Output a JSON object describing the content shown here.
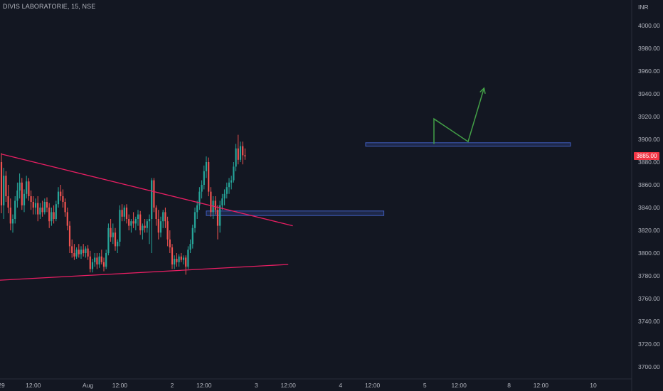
{
  "header": {
    "title": "DIVIS LABORATORIE, 15, NSE"
  },
  "axis": {
    "currency": "INR"
  },
  "last_price": {
    "label": "3885.00",
    "value": 3885
  },
  "colors": {
    "background": "#131722",
    "up": "#26a69a",
    "down": "#ef5350",
    "trendline": "#e91e63",
    "zone": "#3f5dbf",
    "arrow": "#43a047",
    "last_price": "#f23645"
  },
  "chart_data": {
    "type": "candlestick",
    "title": "DIVIS LABORATORIE, 15, NSE",
    "ylabel": "INR",
    "ylim": [
      3690,
      4010
    ],
    "yticks": [
      3700,
      3720,
      3740,
      3760,
      3780,
      3800,
      3820,
      3840,
      3860,
      3880,
      3900,
      3920,
      3940,
      3960,
      3980,
      4000
    ],
    "ytick_labels": [
      "3700.00",
      "3720.00",
      "3740.00",
      "3760.00",
      "3780.00",
      "3800.00",
      "3820.00",
      "3840.00",
      "3860.00",
      "3880.00",
      "3900.00",
      "3920.00",
      "3940.00",
      "3960.00",
      "3980.00",
      "4000.00"
    ],
    "xticks": [
      {
        "label": "29",
        "i": 0
      },
      {
        "label": "12:00",
        "i": 14
      },
      {
        "label": "Aug",
        "i": 38
      },
      {
        "label": "12:00",
        "i": 52
      },
      {
        "label": "2",
        "i": 75
      },
      {
        "label": "12:00",
        "i": 89
      },
      {
        "label": "3",
        "i": 112
      },
      {
        "label": "12:00",
        "i": 126
      },
      {
        "label": "4",
        "i": 149
      },
      {
        "label": "12:00",
        "i": 163
      },
      {
        "label": "5",
        "i": 186
      },
      {
        "label": "12:00",
        "i": 201
      },
      {
        "label": "8",
        "i": 223
      },
      {
        "label": "12:00",
        "i": 237
      },
      {
        "label": "10",
        "i": 260
      }
    ],
    "candles": [
      {
        "o": 3880,
        "h": 3888,
        "l": 3835,
        "c": 3842
      },
      {
        "o": 3842,
        "h": 3875,
        "l": 3830,
        "c": 3868
      },
      {
        "o": 3868,
        "h": 3872,
        "l": 3845,
        "c": 3850
      },
      {
        "o": 3850,
        "h": 3860,
        "l": 3835,
        "c": 3840
      },
      {
        "o": 3840,
        "h": 3848,
        "l": 3820,
        "c": 3826
      },
      {
        "o": 3826,
        "h": 3834,
        "l": 3818,
        "c": 3830
      },
      {
        "o": 3830,
        "h": 3850,
        "l": 3826,
        "c": 3846
      },
      {
        "o": 3846,
        "h": 3862,
        "l": 3840,
        "c": 3855
      },
      {
        "o": 3855,
        "h": 3870,
        "l": 3848,
        "c": 3862
      },
      {
        "o": 3862,
        "h": 3866,
        "l": 3838,
        "c": 3842
      },
      {
        "o": 3842,
        "h": 3856,
        "l": 3836,
        "c": 3852
      },
      {
        "o": 3852,
        "h": 3868,
        "l": 3848,
        "c": 3863
      },
      {
        "o": 3863,
        "h": 3866,
        "l": 3846,
        "c": 3850
      },
      {
        "o": 3850,
        "h": 3855,
        "l": 3838,
        "c": 3845
      },
      {
        "o": 3845,
        "h": 3850,
        "l": 3834,
        "c": 3840
      },
      {
        "o": 3840,
        "h": 3848,
        "l": 3834,
        "c": 3844
      },
      {
        "o": 3844,
        "h": 3850,
        "l": 3828,
        "c": 3834
      },
      {
        "o": 3834,
        "h": 3844,
        "l": 3830,
        "c": 3840
      },
      {
        "o": 3840,
        "h": 3846,
        "l": 3832,
        "c": 3836
      },
      {
        "o": 3836,
        "h": 3848,
        "l": 3834,
        "c": 3845
      },
      {
        "o": 3845,
        "h": 3849,
        "l": 3836,
        "c": 3840
      },
      {
        "o": 3840,
        "h": 3844,
        "l": 3822,
        "c": 3828
      },
      {
        "o": 3828,
        "h": 3840,
        "l": 3824,
        "c": 3836
      },
      {
        "o": 3836,
        "h": 3842,
        "l": 3826,
        "c": 3830
      },
      {
        "o": 3830,
        "h": 3846,
        "l": 3828,
        "c": 3843
      },
      {
        "o": 3843,
        "h": 3858,
        "l": 3840,
        "c": 3854
      },
      {
        "o": 3854,
        "h": 3860,
        "l": 3846,
        "c": 3850
      },
      {
        "o": 3850,
        "h": 3856,
        "l": 3840,
        "c": 3845
      },
      {
        "o": 3845,
        "h": 3848,
        "l": 3832,
        "c": 3836
      },
      {
        "o": 3836,
        "h": 3840,
        "l": 3820,
        "c": 3824
      },
      {
        "o": 3824,
        "h": 3828,
        "l": 3800,
        "c": 3806
      },
      {
        "o": 3806,
        "h": 3812,
        "l": 3796,
        "c": 3800
      },
      {
        "o": 3800,
        "h": 3808,
        "l": 3794,
        "c": 3797
      },
      {
        "o": 3797,
        "h": 3805,
        "l": 3795,
        "c": 3803
      },
      {
        "o": 3803,
        "h": 3808,
        "l": 3796,
        "c": 3799
      },
      {
        "o": 3799,
        "h": 3806,
        "l": 3795,
        "c": 3803
      },
      {
        "o": 3803,
        "h": 3808,
        "l": 3797,
        "c": 3800
      },
      {
        "o": 3800,
        "h": 3806,
        "l": 3796,
        "c": 3804
      },
      {
        "o": 3804,
        "h": 3807,
        "l": 3794,
        "c": 3797
      },
      {
        "o": 3797,
        "h": 3802,
        "l": 3783,
        "c": 3786
      },
      {
        "o": 3786,
        "h": 3795,
        "l": 3783,
        "c": 3792
      },
      {
        "o": 3792,
        "h": 3800,
        "l": 3788,
        "c": 3796
      },
      {
        "o": 3796,
        "h": 3800,
        "l": 3786,
        "c": 3790
      },
      {
        "o": 3790,
        "h": 3800,
        "l": 3787,
        "c": 3797
      },
      {
        "o": 3797,
        "h": 3803,
        "l": 3790,
        "c": 3792
      },
      {
        "o": 3792,
        "h": 3796,
        "l": 3784,
        "c": 3788
      },
      {
        "o": 3788,
        "h": 3803,
        "l": 3786,
        "c": 3800
      },
      {
        "o": 3800,
        "h": 3826,
        "l": 3798,
        "c": 3822
      },
      {
        "o": 3822,
        "h": 3830,
        "l": 3810,
        "c": 3814
      },
      {
        "o": 3814,
        "h": 3826,
        "l": 3808,
        "c": 3818
      },
      {
        "o": 3818,
        "h": 3822,
        "l": 3802,
        "c": 3806
      },
      {
        "o": 3806,
        "h": 3812,
        "l": 3800,
        "c": 3810
      },
      {
        "o": 3810,
        "h": 3842,
        "l": 3806,
        "c": 3838
      },
      {
        "o": 3838,
        "h": 3843,
        "l": 3828,
        "c": 3832
      },
      {
        "o": 3832,
        "h": 3842,
        "l": 3828,
        "c": 3840
      },
      {
        "o": 3840,
        "h": 3843,
        "l": 3826,
        "c": 3830
      },
      {
        "o": 3830,
        "h": 3834,
        "l": 3820,
        "c": 3824
      },
      {
        "o": 3824,
        "h": 3830,
        "l": 3818,
        "c": 3828
      },
      {
        "o": 3828,
        "h": 3836,
        "l": 3822,
        "c": 3826
      },
      {
        "o": 3826,
        "h": 3832,
        "l": 3820,
        "c": 3830
      },
      {
        "o": 3830,
        "h": 3838,
        "l": 3824,
        "c": 3834
      },
      {
        "o": 3834,
        "h": 3837,
        "l": 3816,
        "c": 3820
      },
      {
        "o": 3820,
        "h": 3826,
        "l": 3812,
        "c": 3824
      },
      {
        "o": 3824,
        "h": 3830,
        "l": 3818,
        "c": 3822
      },
      {
        "o": 3822,
        "h": 3830,
        "l": 3818,
        "c": 3828
      },
      {
        "o": 3828,
        "h": 3834,
        "l": 3808,
        "c": 3830
      },
      {
        "o": 3830,
        "h": 3866,
        "l": 3800,
        "c": 3864
      },
      {
        "o": 3864,
        "h": 3866,
        "l": 3836,
        "c": 3840
      },
      {
        "o": 3840,
        "h": 3842,
        "l": 3824,
        "c": 3830
      },
      {
        "o": 3830,
        "h": 3838,
        "l": 3812,
        "c": 3818
      },
      {
        "o": 3818,
        "h": 3832,
        "l": 3814,
        "c": 3828
      },
      {
        "o": 3828,
        "h": 3838,
        "l": 3822,
        "c": 3836
      },
      {
        "o": 3836,
        "h": 3840,
        "l": 3822,
        "c": 3828
      },
      {
        "o": 3828,
        "h": 3832,
        "l": 3806,
        "c": 3812
      },
      {
        "o": 3812,
        "h": 3820,
        "l": 3800,
        "c": 3805
      },
      {
        "o": 3805,
        "h": 3808,
        "l": 3786,
        "c": 3790
      },
      {
        "o": 3790,
        "h": 3798,
        "l": 3786,
        "c": 3795
      },
      {
        "o": 3795,
        "h": 3800,
        "l": 3788,
        "c": 3792
      },
      {
        "o": 3792,
        "h": 3799,
        "l": 3788,
        "c": 3797
      },
      {
        "o": 3797,
        "h": 3800,
        "l": 3792,
        "c": 3794
      },
      {
        "o": 3794,
        "h": 3798,
        "l": 3790,
        "c": 3796
      },
      {
        "o": 3796,
        "h": 3798,
        "l": 3781,
        "c": 3788
      },
      {
        "o": 3788,
        "h": 3806,
        "l": 3786,
        "c": 3803
      },
      {
        "o": 3803,
        "h": 3812,
        "l": 3800,
        "c": 3808
      },
      {
        "o": 3808,
        "h": 3825,
        "l": 3804,
        "c": 3822
      },
      {
        "o": 3822,
        "h": 3840,
        "l": 3818,
        "c": 3836
      },
      {
        "o": 3836,
        "h": 3846,
        "l": 3830,
        "c": 3842
      },
      {
        "o": 3842,
        "h": 3858,
        "l": 3838,
        "c": 3854
      },
      {
        "o": 3854,
        "h": 3864,
        "l": 3848,
        "c": 3860
      },
      {
        "o": 3860,
        "h": 3877,
        "l": 3856,
        "c": 3872
      },
      {
        "o": 3872,
        "h": 3885,
        "l": 3866,
        "c": 3880
      },
      {
        "o": 3880,
        "h": 3884,
        "l": 3850,
        "c": 3854
      },
      {
        "o": 3854,
        "h": 3858,
        "l": 3832,
        "c": 3836
      },
      {
        "o": 3836,
        "h": 3850,
        "l": 3830,
        "c": 3846
      },
      {
        "o": 3846,
        "h": 3850,
        "l": 3834,
        "c": 3838
      },
      {
        "o": 3838,
        "h": 3842,
        "l": 3812,
        "c": 3824
      },
      {
        "o": 3824,
        "h": 3846,
        "l": 3818,
        "c": 3842
      },
      {
        "o": 3842,
        "h": 3852,
        "l": 3838,
        "c": 3848
      },
      {
        "o": 3848,
        "h": 3856,
        "l": 3842,
        "c": 3852
      },
      {
        "o": 3852,
        "h": 3862,
        "l": 3848,
        "c": 3858
      },
      {
        "o": 3858,
        "h": 3866,
        "l": 3852,
        "c": 3862
      },
      {
        "o": 3862,
        "h": 3868,
        "l": 3856,
        "c": 3864
      },
      {
        "o": 3864,
        "h": 3880,
        "l": 3862,
        "c": 3876
      },
      {
        "o": 3876,
        "h": 3896,
        "l": 3872,
        "c": 3892
      },
      {
        "o": 3892,
        "h": 3904,
        "l": 3878,
        "c": 3882
      },
      {
        "o": 3882,
        "h": 3898,
        "l": 3880,
        "c": 3894
      },
      {
        "o": 3894,
        "h": 3898,
        "l": 3878,
        "c": 3886
      },
      {
        "o": 3886,
        "h": 3892,
        "l": 3882,
        "c": 3885
      }
    ],
    "trendlines": [
      {
        "from": {
          "i": 0,
          "y": 3887
        },
        "to": {
          "i": 128,
          "y": 3824
        }
      },
      {
        "from": {
          "i": -2,
          "y": 3776
        },
        "to": {
          "i": 126,
          "y": 3790
        }
      }
    ],
    "zones": [
      {
        "from_i": 90,
        "to_i": 168,
        "y_low": 3833,
        "y_high": 3837
      },
      {
        "from_i": 160,
        "to_i": 250,
        "y_low": 3894,
        "y_high": 3897
      }
    ],
    "projection": [
      {
        "i": 190,
        "y": 3896
      },
      {
        "i": 190,
        "y": 3918
      },
      {
        "i": 205,
        "y": 3898
      },
      {
        "i": 212,
        "y": 3945
      }
    ]
  }
}
